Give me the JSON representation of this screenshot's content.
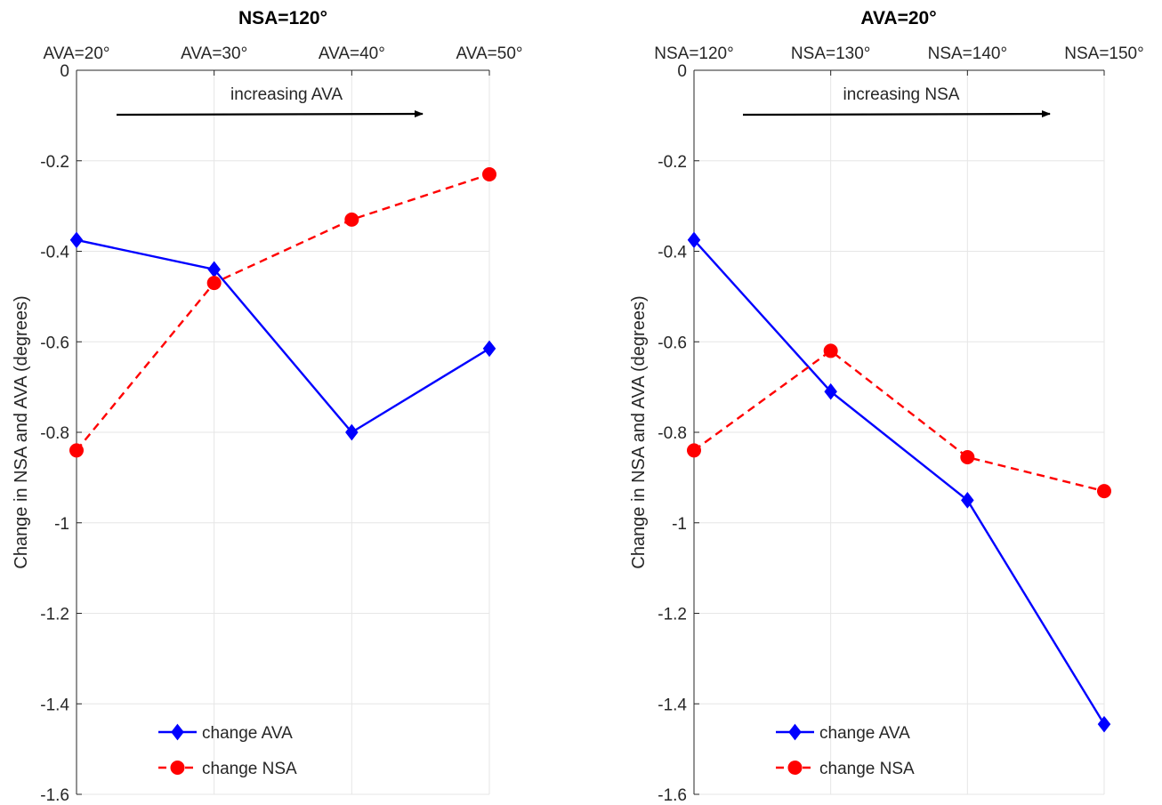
{
  "chart_data": [
    {
      "type": "line",
      "title": "NSA=120°",
      "categories": [
        "AVA=20°",
        "AVA=30°",
        "AVA=40°",
        "AVA=50°"
      ],
      "ylabel": "Change in NSA and AVA (degrees)",
      "ylim": [
        -1.6,
        0
      ],
      "yticks": [
        0,
        -0.2,
        -0.4,
        -0.6,
        -0.8,
        -1,
        -1.2,
        -1.4,
        -1.6
      ],
      "ytick_labels": [
        "0",
        "-0.2",
        "-0.4",
        "-0.6",
        "-0.8",
        "-1",
        "-1.2",
        "-1.4",
        "-1.6"
      ],
      "x_axis_location": "top",
      "grid": true,
      "legend_position": "bottom-left",
      "annotation": {
        "text": "increasing AVA",
        "arrow": "right"
      },
      "series": [
        {
          "name": "change AVA",
          "values": [
            -0.375,
            -0.44,
            -0.8,
            -0.615
          ],
          "color": "#0000ff",
          "marker": "diamond",
          "line": "solid"
        },
        {
          "name": "change NSA",
          "values": [
            -0.84,
            -0.47,
            -0.33,
            -0.23
          ],
          "color": "#ff0000",
          "marker": "circle",
          "line": "dashed"
        }
      ]
    },
    {
      "type": "line",
      "title": "AVA=20°",
      "categories": [
        "NSA=120°",
        "NSA=130°",
        "NSA=140°",
        "NSA=150°"
      ],
      "ylabel": "Change in NSA and AVA (degrees)",
      "ylim": [
        -1.6,
        0
      ],
      "yticks": [
        0,
        -0.2,
        -0.4,
        -0.6,
        -0.8,
        -1,
        -1.2,
        -1.4,
        -1.6
      ],
      "ytick_labels": [
        "0",
        "-0.2",
        "-0.4",
        "-0.6",
        "-0.8",
        "-1",
        "-1.2",
        "-1.4",
        "-1.6"
      ],
      "x_axis_location": "top",
      "grid": true,
      "legend_position": "bottom-left",
      "annotation": {
        "text": "increasing NSA",
        "arrow": "right"
      },
      "series": [
        {
          "name": "change AVA",
          "values": [
            -0.375,
            -0.71,
            -0.95,
            -1.445
          ],
          "color": "#0000ff",
          "marker": "diamond",
          "line": "solid"
        },
        {
          "name": "change NSA",
          "values": [
            -0.84,
            -0.62,
            -0.855,
            -0.93
          ],
          "color": "#ff0000",
          "marker": "circle",
          "line": "dashed"
        }
      ]
    }
  ]
}
